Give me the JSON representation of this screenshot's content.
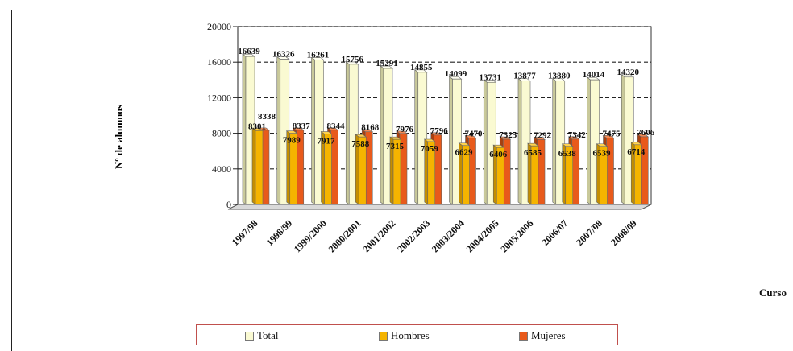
{
  "chart_data": {
    "type": "bar",
    "title": "",
    "ylabel": "Nº de alumnos",
    "xlabel": "Curso",
    "ylim": [
      0,
      20000
    ],
    "yticks": [
      "0",
      "4000",
      "8000",
      "12000",
      "16000",
      "20000"
    ],
    "grid": "horizontal-dashed",
    "legend_position": "bottom",
    "categories": [
      "1997/98",
      "1998/99",
      "1999/2000",
      "2000/2001",
      "2001/2002",
      "2002/2003",
      "2003/2004",
      "2004/2005",
      "2005/2006",
      "2006/07",
      "2007/08",
      "2008/09"
    ],
    "series": [
      {
        "name": "Total",
        "color": "#fafad2",
        "values": [
          16639,
          16326,
          16261,
          15756,
          15291,
          14855,
          14099,
          13731,
          13877,
          13880,
          14014,
          14320
        ]
      },
      {
        "name": "Hombres",
        "color": "#f5b400",
        "values": [
          8301,
          7989,
          7917,
          7588,
          7315,
          7059,
          6629,
          6406,
          6585,
          6538,
          6539,
          6714
        ]
      },
      {
        "name": "Mujeres",
        "color": "#e85a1b",
        "values": [
          8338,
          8337,
          8344,
          8168,
          7976,
          7796,
          7470,
          7325,
          7292,
          7342,
          7475,
          7606
        ]
      }
    ]
  },
  "labels": {
    "ylabel": "Nº de alumnos",
    "xlabel": "Curso",
    "legend_total": "Total",
    "legend_hombres": "Hombres",
    "legend_mujeres": "Mujeres"
  }
}
